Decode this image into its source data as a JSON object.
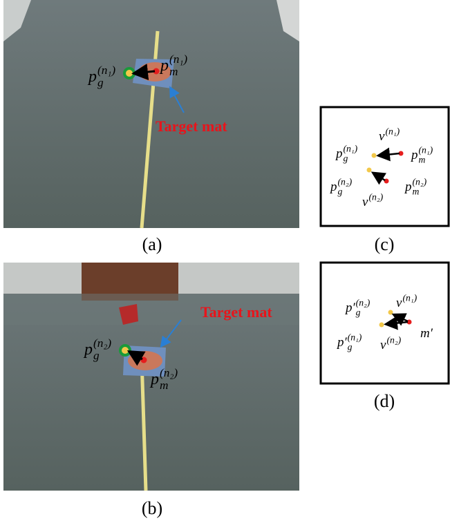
{
  "panels": [
    {
      "caption": "(a)",
      "annotation": "Target mat",
      "math": [
        {
          "base": "p",
          "sub": "g",
          "sup": "(n₁)"
        },
        {
          "base": "p",
          "sub": "m",
          "sup": "(n₁)"
        }
      ]
    },
    {
      "caption": "(b)",
      "annotation": "Target mat",
      "math": [
        {
          "base": "p",
          "sub": "g",
          "sup": "(n₂)"
        },
        {
          "base": "p",
          "sub": "m",
          "sup": "(n₂)"
        }
      ]
    },
    {
      "caption": "(c)",
      "math": [
        {
          "base": "p",
          "sub": "g",
          "sup": "(n₁)"
        },
        {
          "base": "v",
          "sub": "",
          "sup": "(n₁)"
        },
        {
          "base": "p",
          "sub": "m",
          "sup": "(n₁)"
        },
        {
          "base": "p",
          "sub": "g",
          "sup": "(n₂)"
        },
        {
          "base": "p",
          "sub": "m",
          "sup": "(n₂)"
        },
        {
          "base": "v",
          "sub": "",
          "sup": "(n₂)"
        }
      ]
    },
    {
      "caption": "(d)",
      "math": [
        {
          "base": "p′",
          "sub": "g",
          "sup": "(n₂)"
        },
        {
          "base": "v",
          "sub": "",
          "sup": "(n₁)"
        },
        {
          "base": "p′",
          "sub": "g",
          "sup": "(n₁)"
        },
        {
          "base": "v",
          "sub": "",
          "sup": "(n₂)"
        },
        {
          "base": "m′",
          "sub": "",
          "sup": ""
        }
      ]
    }
  ]
}
